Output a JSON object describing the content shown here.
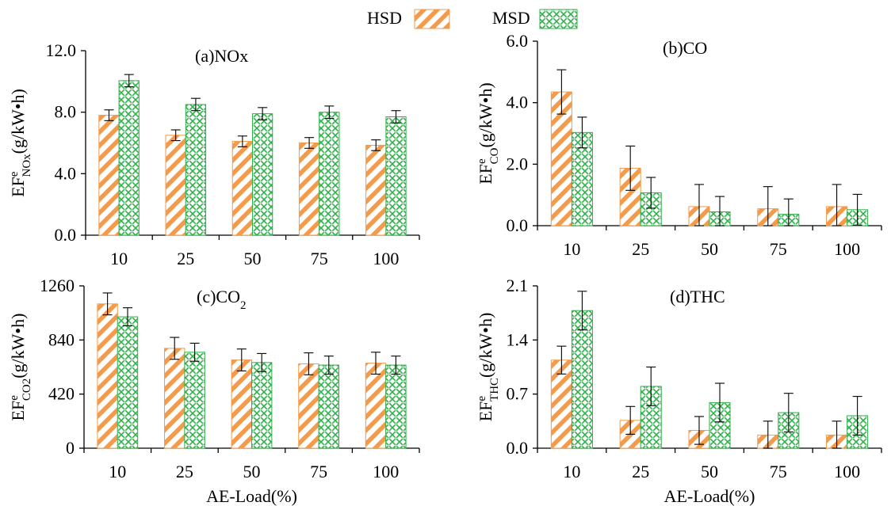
{
  "legend": {
    "items": [
      {
        "name": "HSD",
        "color": "#f39a4b",
        "pattern": "diagonal-stripe"
      },
      {
        "name": "MSD",
        "color": "#2fb14a",
        "pattern": "crosshatch"
      }
    ]
  },
  "colors": {
    "hsd": "#f39a4b",
    "msd": "#2fb14a",
    "axis": "#000000",
    "error_bar": "#000000"
  },
  "chart_data": [
    {
      "type": "bar",
      "title": "(a)NOx",
      "ylabel_main": "EF",
      "ylabel_sup": "e",
      "ylabel_sub": "NOx",
      "ylabel_unit": "(g/kW•h)",
      "xlabel": "",
      "categories": [
        "10",
        "25",
        "50",
        "75",
        "100"
      ],
      "ylim": [
        0,
        12
      ],
      "yticks": [
        "0.0",
        "4.0",
        "8.0",
        "12.0"
      ],
      "ytick_values": [
        0,
        4,
        8,
        12
      ],
      "series": [
        {
          "name": "HSD",
          "values": [
            7.8,
            6.5,
            6.1,
            6.0,
            5.85
          ],
          "errors": [
            0.35,
            0.35,
            0.35,
            0.35,
            0.35
          ]
        },
        {
          "name": "MSD",
          "values": [
            10.05,
            8.5,
            7.9,
            8.0,
            7.7
          ],
          "errors": [
            0.4,
            0.4,
            0.4,
            0.4,
            0.4
          ]
        }
      ]
    },
    {
      "type": "bar",
      "title": "(b)CO",
      "ylabel_main": "EF",
      "ylabel_sup": "e",
      "ylabel_sub": "CO",
      "ylabel_unit": "(g/kW•h)",
      "xlabel": "",
      "categories": [
        "10",
        "25",
        "50",
        "75",
        "100"
      ],
      "ylim": [
        0,
        6
      ],
      "yticks": [
        "0.0",
        "2.0",
        "4.0",
        "6.0"
      ],
      "ytick_values": [
        0,
        2,
        4,
        6
      ],
      "series": [
        {
          "name": "HSD",
          "values": [
            4.35,
            1.87,
            0.62,
            0.55,
            0.62
          ],
          "errors": [
            0.72,
            0.72,
            0.72,
            0.72,
            0.72
          ]
        },
        {
          "name": "MSD",
          "values": [
            3.03,
            1.07,
            0.45,
            0.37,
            0.52
          ],
          "errors": [
            0.5,
            0.5,
            0.5,
            0.5,
            0.5
          ]
        }
      ]
    },
    {
      "type": "bar",
      "title": "(c)CO",
      "title_sub": "2",
      "ylabel_main": "EF",
      "ylabel_sup": "e",
      "ylabel_sub": "CO2",
      "ylabel_unit": "(g/kW•h)",
      "xlabel": "AE-Load(%)",
      "categories": [
        "10",
        "25",
        "50",
        "75",
        "100"
      ],
      "ylim": [
        0,
        1260
      ],
      "yticks": [
        "0",
        "420",
        "840",
        "1260"
      ],
      "ytick_values": [
        0,
        420,
        840,
        1260
      ],
      "series": [
        {
          "name": "HSD",
          "values": [
            1120,
            775,
            685,
            655,
            660
          ],
          "errors": [
            85,
            85,
            85,
            85,
            85
          ]
        },
        {
          "name": "MSD",
          "values": [
            1020,
            745,
            665,
            645,
            645
          ],
          "errors": [
            70,
            70,
            70,
            70,
            70
          ]
        }
      ]
    },
    {
      "type": "bar",
      "title": "(d)THC",
      "ylabel_main": "EF",
      "ylabel_sup": "e",
      "ylabel_sub": "THC",
      "ylabel_unit": "(g/kW•h)",
      "xlabel": "AE-Load(%)",
      "categories": [
        "10",
        "25",
        "50",
        "75",
        "100"
      ],
      "ylim": [
        0,
        2.1
      ],
      "yticks": [
        "0.0",
        "0.7",
        "1.4",
        "2.1"
      ],
      "ytick_values": [
        0,
        0.7,
        1.4,
        2.1
      ],
      "series": [
        {
          "name": "HSD",
          "values": [
            1.14,
            0.36,
            0.23,
            0.17,
            0.17
          ],
          "errors": [
            0.18,
            0.18,
            0.18,
            0.18,
            0.18
          ]
        },
        {
          "name": "MSD",
          "values": [
            1.78,
            0.8,
            0.59,
            0.46,
            0.42
          ],
          "errors": [
            0.25,
            0.25,
            0.25,
            0.25,
            0.25
          ]
        }
      ]
    }
  ]
}
